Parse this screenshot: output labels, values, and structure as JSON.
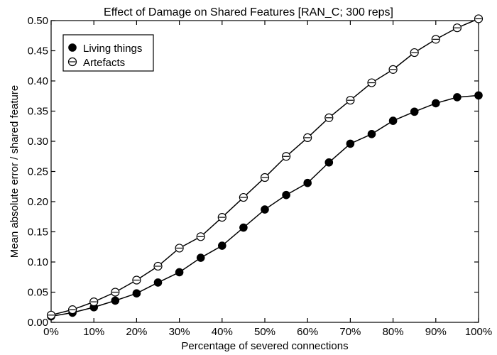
{
  "chart_data": {
    "type": "line",
    "title": "Effect of Damage on Shared Features [RAN_C; 300 reps]",
    "xlabel": "Percentage of severed connections",
    "ylabel": "Mean absolute error / shared feature",
    "x": [
      0,
      5,
      10,
      15,
      20,
      25,
      30,
      35,
      40,
      45,
      50,
      55,
      60,
      65,
      70,
      75,
      80,
      85,
      90,
      95,
      100
    ],
    "x_tick_values": [
      0,
      10,
      20,
      30,
      40,
      50,
      60,
      70,
      80,
      90,
      100
    ],
    "x_tick_labels": [
      "0%",
      "10%",
      "20%",
      "30%",
      "40%",
      "50%",
      "60%",
      "70%",
      "80%",
      "90%",
      "100%"
    ],
    "y_tick_values": [
      0.0,
      0.05,
      0.1,
      0.15,
      0.2,
      0.25,
      0.3,
      0.35,
      0.4,
      0.45,
      0.5
    ],
    "y_tick_labels": [
      "0.00",
      "0.05",
      "0.10",
      "0.15",
      "0.20",
      "0.25",
      "0.30",
      "0.35",
      "0.40",
      "0.45",
      "0.50"
    ],
    "xlim": [
      0,
      100
    ],
    "ylim": [
      0,
      0.5
    ],
    "grid": false,
    "legend_position": "top-left",
    "series": [
      {
        "name": "Living things",
        "marker": "filled-circle",
        "values": [
          0.01,
          0.016,
          0.025,
          0.036,
          0.048,
          0.066,
          0.083,
          0.107,
          0.127,
          0.157,
          0.187,
          0.211,
          0.231,
          0.265,
          0.296,
          0.312,
          0.334,
          0.349,
          0.363,
          0.373,
          0.376
        ]
      },
      {
        "name": "Artefacts",
        "marker": "open-circle-bar",
        "values": [
          0.012,
          0.021,
          0.034,
          0.05,
          0.07,
          0.093,
          0.123,
          0.142,
          0.174,
          0.207,
          0.24,
          0.275,
          0.306,
          0.339,
          0.368,
          0.397,
          0.419,
          0.447,
          0.469,
          0.488,
          0.503
        ]
      }
    ]
  }
}
